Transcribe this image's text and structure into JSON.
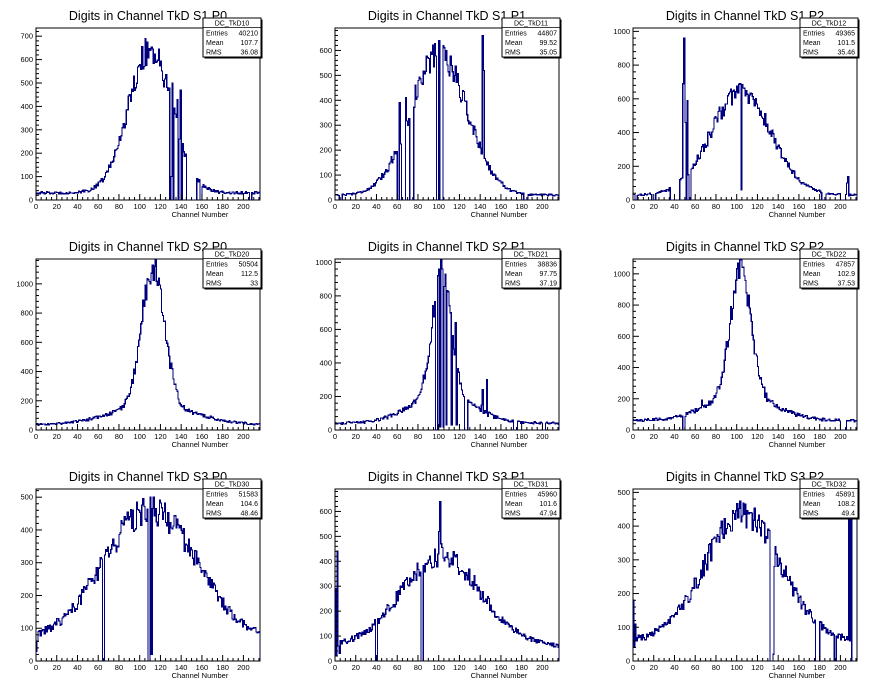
{
  "page": {
    "background": "#ffffff",
    "line_color": "#00007f",
    "axis_color": "#000000"
  },
  "chart_data": [
    {
      "type": "histogram",
      "title": "Digits in Channel TkD S1 P0",
      "xlabel": "Channel Number",
      "ylabel": "",
      "xlim": [
        0,
        216
      ],
      "ylim": [
        0,
        735
      ],
      "xticks": [
        0,
        20,
        40,
        60,
        80,
        100,
        120,
        140,
        160,
        180,
        200
      ],
      "yticks": [
        0,
        100,
        200,
        300,
        400,
        500,
        600,
        700
      ],
      "grid": false,
      "stats": {
        "name": "DC_TkD10",
        "entries": "40210",
        "mean": "107.7",
        "rms": "36.08"
      },
      "profile": {
        "shape": "gauss",
        "peak": 640,
        "center": 110,
        "sigma": 21,
        "baseline": 30
      },
      "spikes": [
        [
          105,
          690
        ],
        [
          130,
          100
        ],
        [
          131,
          500
        ],
        [
          132,
          0
        ],
        [
          136,
          430
        ],
        [
          137,
          0
        ],
        [
          139,
          470
        ],
        [
          140,
          0
        ]
      ],
      "gaps": [
        [
          129,
          133
        ],
        [
          145,
          155
        ],
        [
          158,
          160
        ],
        [
          206,
          208
        ]
      ]
    },
    {
      "type": "histogram",
      "title": "Digits in Channel TkD S1 P1",
      "xlabel": "Channel Number",
      "ylabel": "",
      "xlim": [
        0,
        216
      ],
      "ylim": [
        0,
        690
      ],
      "xticks": [
        0,
        20,
        40,
        60,
        80,
        100,
        120,
        140,
        160,
        180,
        200
      ],
      "yticks": [
        0,
        100,
        200,
        300,
        400,
        500,
        600
      ],
      "grid": false,
      "stats": {
        "name": "DC_TkD11",
        "entries": "44807",
        "mean": "99.52",
        "rms": "35.05"
      },
      "profile": {
        "shape": "gauss",
        "peak": 590,
        "center": 100,
        "sigma": 27,
        "baseline": 20
      },
      "spikes": [
        [
          62,
          390
        ],
        [
          64,
          0
        ],
        [
          68,
          410
        ],
        [
          72,
          0
        ],
        [
          100,
          640
        ],
        [
          101,
          0
        ],
        [
          142,
          660
        ],
        [
          143,
          520
        ]
      ],
      "gaps": [
        [
          4,
          7
        ],
        [
          60,
          62
        ],
        [
          65,
          68
        ],
        [
          73,
          76
        ],
        [
          98,
          100
        ],
        [
          102,
          104
        ],
        [
          182,
          186
        ]
      ]
    },
    {
      "type": "histogram",
      "title": "Digits in Channel TkD S1 P2",
      "xlabel": "Channel Number",
      "ylabel": "",
      "xlim": [
        0,
        216
      ],
      "ylim": [
        0,
        1020
      ],
      "xticks": [
        0,
        20,
        40,
        60,
        80,
        100,
        120,
        140,
        160,
        180,
        200
      ],
      "yticks": [
        0,
        200,
        400,
        600,
        800,
        1000
      ],
      "grid": false,
      "stats": {
        "name": "DC_TkD12",
        "entries": "49365",
        "mean": "101.5",
        "rms": "35.46"
      },
      "profile": {
        "shape": "gauss",
        "peak": 640,
        "center": 104,
        "sigma": 29,
        "baseline": 30
      },
      "spikes": [
        [
          48,
          690
        ],
        [
          49,
          960
        ],
        [
          50,
          460
        ],
        [
          51,
          0
        ],
        [
          52,
          590
        ],
        [
          53,
          150
        ],
        [
          103,
          690
        ],
        [
          104,
          60
        ],
        [
          206,
          100
        ],
        [
          207,
          140
        ]
      ],
      "gaps": [
        [
          2,
          4
        ],
        [
          18,
          22
        ],
        [
          36,
          45
        ],
        [
          54,
          56
        ],
        [
          182,
          186
        ],
        [
          200,
          205
        ]
      ]
    },
    {
      "type": "histogram",
      "title": "Digits in Channel TkD S2 P0",
      "xlabel": "Channel Number",
      "ylabel": "",
      "xlim": [
        0,
        216
      ],
      "ylim": [
        0,
        1170
      ],
      "xticks": [
        0,
        20,
        40,
        60,
        80,
        100,
        120,
        140,
        160,
        180,
        200
      ],
      "yticks": [
        0,
        200,
        400,
        600,
        800,
        1000
      ],
      "grid": false,
      "stats": {
        "name": "DC_TkD20",
        "entries": "50504",
        "mean": "112.5",
        "rms": "33"
      },
      "profile": {
        "shape": "peak",
        "peak": 1080,
        "center": 113,
        "sigma": 11,
        "broad": 130,
        "broad_sigma": 40,
        "baseline": 35
      },
      "spikes": [
        [
          114,
          1120
        ]
      ],
      "gaps": []
    },
    {
      "type": "histogram",
      "title": "Digits in Channel TkD S2 P1",
      "xlabel": "Channel Number",
      "ylabel": "",
      "xlim": [
        0,
        216
      ],
      "ylim": [
        0,
        1020
      ],
      "xticks": [
        0,
        20,
        40,
        60,
        80,
        100,
        120,
        140,
        160,
        180,
        200
      ],
      "yticks": [
        0,
        200,
        400,
        600,
        800,
        1000
      ],
      "grid": false,
      "stats": {
        "name": "DC_TkD21",
        "entries": "38836",
        "mean": "97.75",
        "rms": "37.19"
      },
      "profile": {
        "shape": "peak",
        "peak": 920,
        "center": 103,
        "sigma": 9,
        "broad": 170,
        "broad_sigma": 30,
        "baseline": 40
      },
      "spikes": [
        [
          100,
          960
        ],
        [
          101,
          20
        ],
        [
          103,
          960
        ],
        [
          104,
          20
        ],
        [
          106,
          930
        ],
        [
          107,
          30
        ],
        [
          111,
          700
        ],
        [
          112,
          30
        ],
        [
          116,
          640
        ],
        [
          117,
          30
        ],
        [
          141,
          150
        ],
        [
          142,
          240
        ],
        [
          146,
          300
        ],
        [
          147,
          80
        ]
      ],
      "gaps": [
        [
          97,
          99
        ],
        [
          125,
          128
        ],
        [
          172,
          176
        ],
        [
          200,
          203
        ]
      ]
    },
    {
      "type": "histogram",
      "title": "Digits in Channel TkD S2 P2",
      "xlabel": "Channel Number",
      "ylabel": "",
      "xlim": [
        0,
        216
      ],
      "ylim": [
        0,
        1095
      ],
      "xticks": [
        0,
        20,
        40,
        60,
        80,
        100,
        120,
        140,
        160,
        180,
        200
      ],
      "yticks": [
        0,
        200,
        400,
        600,
        800,
        1000
      ],
      "grid": false,
      "stats": {
        "name": "DC_TkD22",
        "entries": "47857",
        "mean": "102.9",
        "rms": "37.53"
      },
      "profile": {
        "shape": "peak",
        "peak": 960,
        "center": 104,
        "sigma": 10,
        "broad": 160,
        "broad_sigma": 32,
        "baseline": 60
      },
      "spikes": [
        [
          105,
          1040
        ],
        [
          66,
          190
        ],
        [
          78,
          220
        ]
      ],
      "gaps": [
        [
          48,
          50
        ],
        [
          200,
          206
        ]
      ]
    },
    {
      "type": "histogram",
      "title": "Digits in Channel TkD S3 P0",
      "xlabel": "Channel Number",
      "ylabel": "",
      "xlim": [
        0,
        216
      ],
      "ylim": [
        0,
        525
      ],
      "xticks": [
        0,
        20,
        40,
        60,
        80,
        100,
        120,
        140,
        160,
        180,
        200
      ],
      "yticks": [
        0,
        100,
        200,
        300,
        400,
        500
      ],
      "grid": false,
      "stats": {
        "name": "DC_TkD30",
        "entries": "51583",
        "mean": "104.6",
        "rms": "48.46"
      },
      "profile": {
        "shape": "gauss",
        "peak": 460,
        "center": 110,
        "sigma": 45,
        "baseline": 60
      },
      "spikes": [
        [
          0,
          30
        ],
        [
          1,
          60
        ],
        [
          2,
          90
        ],
        [
          110,
          500
        ],
        [
          111,
          20
        ]
      ],
      "gaps": [
        [
          64,
          66
        ],
        [
          108,
          110
        ]
      ]
    },
    {
      "type": "histogram",
      "title": "Digits in Channel TkD S3 P1",
      "xlabel": "Channel Number",
      "ylabel": "",
      "xlim": [
        0,
        216
      ],
      "ylim": [
        0,
        690
      ],
      "xticks": [
        0,
        20,
        40,
        60,
        80,
        100,
        120,
        140,
        160,
        180,
        200
      ],
      "yticks": [
        0,
        100,
        200,
        300,
        400,
        500,
        600
      ],
      "grid": false,
      "stats": {
        "name": "DC_TkD31",
        "entries": "45960",
        "mean": "101.6",
        "rms": "47.94"
      },
      "profile": {
        "shape": "gauss",
        "peak": 420,
        "center": 102,
        "sigma": 38,
        "baseline": 60
      },
      "spikes": [
        [
          0,
          290
        ],
        [
          1,
          20
        ],
        [
          2,
          440
        ],
        [
          3,
          60
        ],
        [
          4,
          30
        ],
        [
          100,
          520
        ],
        [
          101,
          640
        ],
        [
          102,
          470
        ]
      ],
      "gaps": [
        [
          39,
          41
        ],
        [
          83,
          85
        ]
      ]
    },
    {
      "type": "histogram",
      "title": "Digits in Channel TkD S3 P2",
      "xlabel": "Channel Number",
      "ylabel": "",
      "xlim": [
        0,
        216
      ],
      "ylim": [
        0,
        510
      ],
      "xticks": [
        0,
        20,
        40,
        60,
        80,
        100,
        120,
        140,
        160,
        180,
        200
      ],
      "yticks": [
        0,
        100,
        200,
        300,
        400,
        500
      ],
      "grid": false,
      "stats": {
        "name": "DC_TkD32",
        "entries": "45891",
        "mean": "108.2",
        "rms": "49.4"
      },
      "profile": {
        "shape": "gauss",
        "peak": 440,
        "center": 106,
        "sigma": 36,
        "baseline": 60
      },
      "spikes": [
        [
          0,
          180
        ],
        [
          1,
          40
        ],
        [
          2,
          110
        ],
        [
          135,
          20
        ],
        [
          136,
          280
        ],
        [
          208,
          420
        ],
        [
          209,
          60
        ],
        [
          210,
          460
        ],
        [
          211,
          0
        ]
      ],
      "gaps": [
        [
          132,
          135
        ],
        [
          176,
          180
        ],
        [
          194,
          196
        ],
        [
          212,
          216
        ]
      ]
    }
  ]
}
